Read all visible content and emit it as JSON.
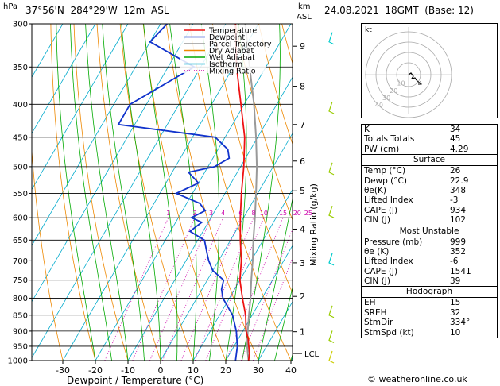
{
  "header": {
    "hpa_label": "hPa",
    "location": "37°56'N  284°29'W  12m  ASL",
    "km_label": "km",
    "asl_label": "ASL",
    "datetime": "24.08.2021  18GMT  (Base: 12)"
  },
  "footer": {
    "copyright": "© weatheronline.co.uk"
  },
  "chart_data": {
    "type": "skew-t",
    "xlabel": "Dewpoint / Temperature (°C)",
    "ylabel_right": "Mixing Ratio (g/kg)",
    "pressure_ticks": [
      300,
      350,
      400,
      450,
      500,
      550,
      600,
      650,
      700,
      750,
      800,
      850,
      900,
      950,
      1000
    ],
    "temperature_ticks": [
      -30,
      -20,
      -10,
      0,
      10,
      20,
      30,
      40
    ],
    "km_ticks": [
      {
        "km": "1",
        "p": 902
      },
      {
        "km": "2",
        "p": 795
      },
      {
        "km": "3",
        "p": 705
      },
      {
        "km": "4",
        "p": 625
      },
      {
        "km": "5",
        "p": 545
      },
      {
        "km": "6",
        "p": 490
      },
      {
        "km": "7",
        "p": 430
      },
      {
        "km": "8",
        "p": 375
      },
      {
        "km": "9",
        "p": 325
      }
    ],
    "lcl": {
      "label": "LCL",
      "p": 975
    },
    "mixing_ratio_labels": [
      "1",
      "2",
      "3",
      "4",
      "6",
      "8",
      "10",
      "15",
      "20",
      "25"
    ],
    "mixing_ratio_values": [
      1,
      2,
      3,
      4,
      6,
      8,
      10,
      15,
      20,
      25
    ],
    "legend": [
      {
        "name": "Temperature",
        "color": "#ee1111",
        "style": "solid"
      },
      {
        "name": "Dewpoint",
        "color": "#1133cc",
        "style": "solid"
      },
      {
        "name": "Parcel Trajectory",
        "color": "#999999",
        "style": "solid"
      },
      {
        "name": "Dry Adiabat",
        "color": "#ee8800",
        "style": "solid"
      },
      {
        "name": "Wet Adiabat",
        "color": "#00aa00",
        "style": "solid"
      },
      {
        "name": "Isotherm",
        "color": "#00aacc",
        "style": "solid"
      },
      {
        "name": "Mixing Ratio",
        "color": "#cc00aa",
        "style": "dotted"
      }
    ],
    "temperature": [
      {
        "p": 1000,
        "t": 27
      },
      {
        "p": 975,
        "t": 26
      },
      {
        "p": 950,
        "t": 24.5
      },
      {
        "p": 925,
        "t": 23
      },
      {
        "p": 900,
        "t": 21
      },
      {
        "p": 850,
        "t": 18
      },
      {
        "p": 800,
        "t": 14
      },
      {
        "p": 750,
        "t": 10
      },
      {
        "p": 700,
        "t": 7
      },
      {
        "p": 650,
        "t": 3
      },
      {
        "p": 600,
        "t": -1
      },
      {
        "p": 550,
        "t": -5
      },
      {
        "p": 500,
        "t": -9
      },
      {
        "p": 450,
        "t": -14
      },
      {
        "p": 400,
        "t": -21
      },
      {
        "p": 350,
        "t": -29
      },
      {
        "p": 300,
        "t": -37
      }
    ],
    "dewpoint": [
      {
        "p": 1000,
        "t": 23
      },
      {
        "p": 950,
        "t": 21
      },
      {
        "p": 900,
        "t": 18
      },
      {
        "p": 850,
        "t": 14
      },
      {
        "p": 800,
        "t": 8
      },
      {
        "p": 775,
        "t": 6
      },
      {
        "p": 750,
        "t": 5
      },
      {
        "p": 725,
        "t": 0
      },
      {
        "p": 700,
        "t": -3
      },
      {
        "p": 680,
        "t": -5
      },
      {
        "p": 650,
        "t": -8
      },
      {
        "p": 630,
        "t": -14
      },
      {
        "p": 610,
        "t": -12
      },
      {
        "p": 600,
        "t": -16
      },
      {
        "p": 585,
        "t": -13
      },
      {
        "p": 570,
        "t": -16
      },
      {
        "p": 550,
        "t": -25
      },
      {
        "p": 530,
        "t": -20
      },
      {
        "p": 510,
        "t": -25
      },
      {
        "p": 500,
        "t": -18
      },
      {
        "p": 485,
        "t": -15
      },
      {
        "p": 470,
        "t": -17
      },
      {
        "p": 450,
        "t": -23
      },
      {
        "p": 430,
        "t": -55
      },
      {
        "p": 400,
        "t": -55
      },
      {
        "p": 350,
        "t": -42
      },
      {
        "p": 320,
        "t": -60
      },
      {
        "p": 300,
        "t": -58
      }
    ],
    "parcel": [
      {
        "p": 1000,
        "t": 27
      },
      {
        "p": 975,
        "t": 25.5
      },
      {
        "p": 950,
        "t": 24
      },
      {
        "p": 900,
        "t": 21.5
      },
      {
        "p": 850,
        "t": 19
      },
      {
        "p": 800,
        "t": 16.5
      },
      {
        "p": 750,
        "t": 13.5
      },
      {
        "p": 700,
        "t": 10.5
      },
      {
        "p": 650,
        "t": 7
      },
      {
        "p": 600,
        "t": 3.5
      },
      {
        "p": 550,
        "t": -0.5
      },
      {
        "p": 500,
        "t": -5
      },
      {
        "p": 450,
        "t": -10.5
      },
      {
        "p": 400,
        "t": -17
      },
      {
        "p": 350,
        "t": -25
      },
      {
        "p": 300,
        "t": -34
      }
    ]
  },
  "hodograph": {
    "label": "kt",
    "ring_labels": [
      "10",
      "20",
      "30",
      "40"
    ],
    "ring_values": [
      10,
      20,
      30,
      40
    ]
  },
  "indices": {
    "general": [
      {
        "label": "K",
        "value": "34"
      },
      {
        "label": "Totals Totals",
        "value": "45"
      },
      {
        "label": "PW (cm)",
        "value": "4.29"
      }
    ],
    "surface": {
      "title": "Surface",
      "rows": [
        {
          "label": "Temp (°C)",
          "value": "26"
        },
        {
          "label": "Dewp (°C)",
          "value": "22.9"
        },
        {
          "label": "θe(K)",
          "value": "348"
        },
        {
          "label": "Lifted Index",
          "value": "-3"
        },
        {
          "label": "CAPE (J)",
          "value": "934"
        },
        {
          "label": "CIN (J)",
          "value": "102"
        }
      ]
    },
    "most_unstable": {
      "title": "Most Unstable",
      "rows": [
        {
          "label": "Pressure (mb)",
          "value": "999"
        },
        {
          "label": "θe (K)",
          "value": "352"
        },
        {
          "label": "Lifted Index",
          "value": "-6"
        },
        {
          "label": "CAPE (J)",
          "value": "1541"
        },
        {
          "label": "CIN (J)",
          "value": "39"
        }
      ]
    },
    "hodo_table": {
      "title": "Hodograph",
      "rows": [
        {
          "label": "EH",
          "value": "15"
        },
        {
          "label": "SREH",
          "value": "32"
        },
        {
          "label": "StmDir",
          "value": "334°"
        },
        {
          "label": "StmSpd (kt)",
          "value": "10"
        }
      ]
    }
  }
}
